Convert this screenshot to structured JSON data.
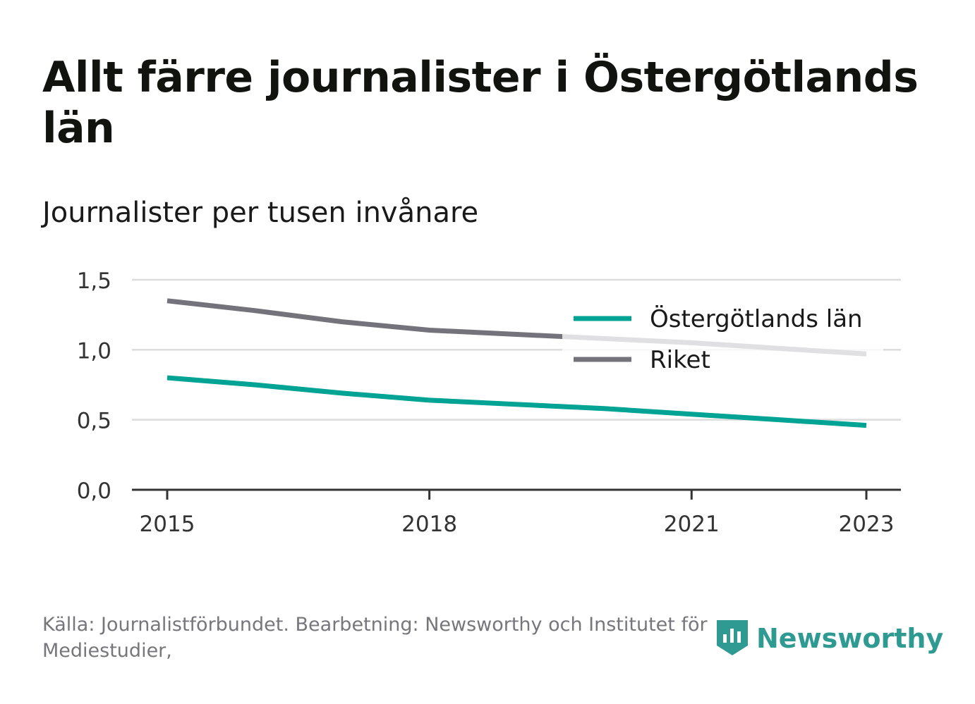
{
  "title": "Allt färre journalister i Östergötlands län",
  "subtitle": "Journalister per tusen invånare",
  "source": "Källa: Journalistförbundet. Bearbetning: Newsworthy och Institutet för Mediestudier,",
  "logo": {
    "text": "Newsworthy",
    "icon": "newsworthy-logo-icon",
    "color": "#2e9a91"
  },
  "chart_data": {
    "type": "line",
    "x": [
      2015,
      2016,
      2017,
      2018,
      2019,
      2020,
      2021,
      2022,
      2023
    ],
    "series": [
      {
        "name": "Östergötlands län",
        "color": "#00a394",
        "values": [
          0.8,
          0.75,
          0.69,
          0.64,
          0.61,
          0.58,
          0.54,
          0.5,
          0.46
        ]
      },
      {
        "name": "Riket",
        "color": "#74737c",
        "values": [
          1.35,
          1.28,
          1.2,
          1.14,
          1.11,
          1.08,
          1.05,
          1.01,
          0.97
        ]
      }
    ],
    "x_ticks": [
      2015,
      2018,
      2021,
      2023
    ],
    "x_tick_labels": [
      "2015",
      "2018",
      "2021",
      "2023"
    ],
    "y_ticks": [
      0,
      0.5,
      1.0,
      1.5
    ],
    "y_tick_labels": [
      "0,0",
      "0,5",
      "1,0",
      "1,5"
    ],
    "ylim": [
      0,
      1.5
    ],
    "xlim": [
      2015,
      2023
    ],
    "grid": true,
    "legend_position": "top-right"
  }
}
